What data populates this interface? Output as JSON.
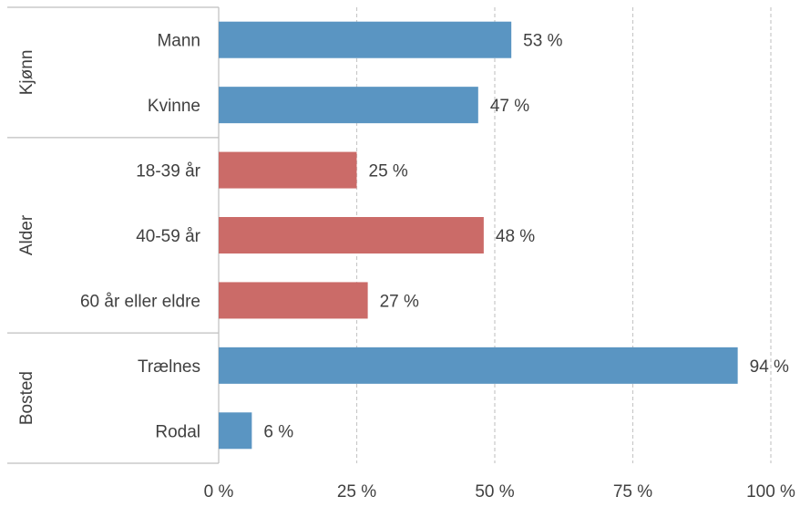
{
  "chart_data": {
    "type": "bar",
    "orientation": "horizontal",
    "groups": [
      {
        "name": "Kjønn",
        "categories": [
          "Mann",
          "Kvinne"
        ],
        "values": [
          53,
          47
        ],
        "color": "#5a95c2"
      },
      {
        "name": "Alder",
        "categories": [
          "18-39 år",
          "40-59 år",
          "60 år eller eldre"
        ],
        "values": [
          25,
          48,
          27
        ],
        "color": "#cb6b68"
      },
      {
        "name": "Bosted",
        "categories": [
          "Trælnes",
          "Rodal"
        ],
        "values": [
          94,
          6
        ],
        "color": "#5a95c2"
      }
    ],
    "data_labels": [
      "53 %",
      "47 %",
      "25 %",
      "48 %",
      "27 %",
      "94 %",
      "6 %"
    ],
    "x_ticks": [
      0,
      25,
      50,
      75,
      100
    ],
    "x_tick_labels": [
      "0 %",
      "25 %",
      "50 %",
      "75 %",
      "100 %"
    ],
    "xlim": [
      0,
      100
    ],
    "grid": "vertical dashed",
    "legend": "none"
  }
}
